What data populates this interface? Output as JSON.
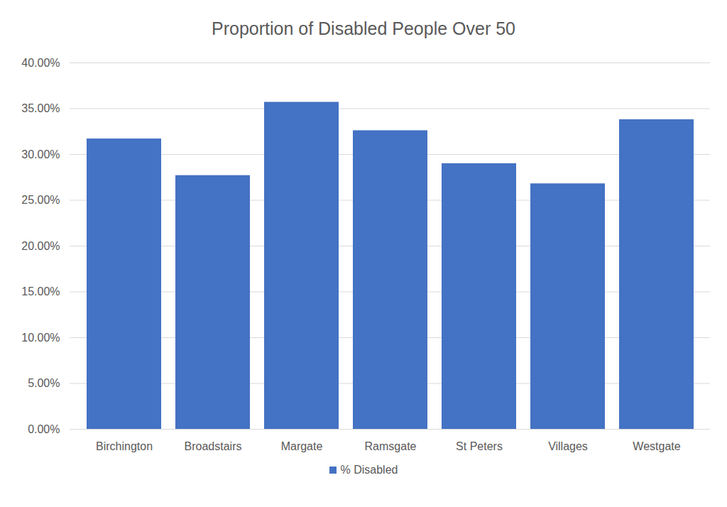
{
  "chart_data": {
    "type": "bar",
    "title": "Proportion of Disabled People Over 50",
    "categories": [
      "Birchington",
      "Broadstairs",
      "Margate",
      "Ramsgate",
      "St Peters",
      "Villages",
      "Westgate"
    ],
    "series": [
      {
        "name": "% Disabled",
        "color": "#4472c4",
        "values": [
          31.7,
          27.7,
          35.7,
          32.6,
          29.0,
          26.8,
          33.8
        ]
      }
    ],
    "ylim": [
      0,
      40
    ],
    "yticks": [
      {
        "value": 0,
        "label": "0.00%"
      },
      {
        "value": 5,
        "label": "5.00%"
      },
      {
        "value": 10,
        "label": "10.00%"
      },
      {
        "value": 15,
        "label": "15.00%"
      },
      {
        "value": 20,
        "label": "20.00%"
      },
      {
        "value": 25,
        "label": "25.00%"
      },
      {
        "value": 30,
        "label": "30.00%"
      },
      {
        "value": 35,
        "label": "35.00%"
      },
      {
        "value": 40,
        "label": "40.00%"
      }
    ],
    "grid": true,
    "legend": "bottom"
  }
}
